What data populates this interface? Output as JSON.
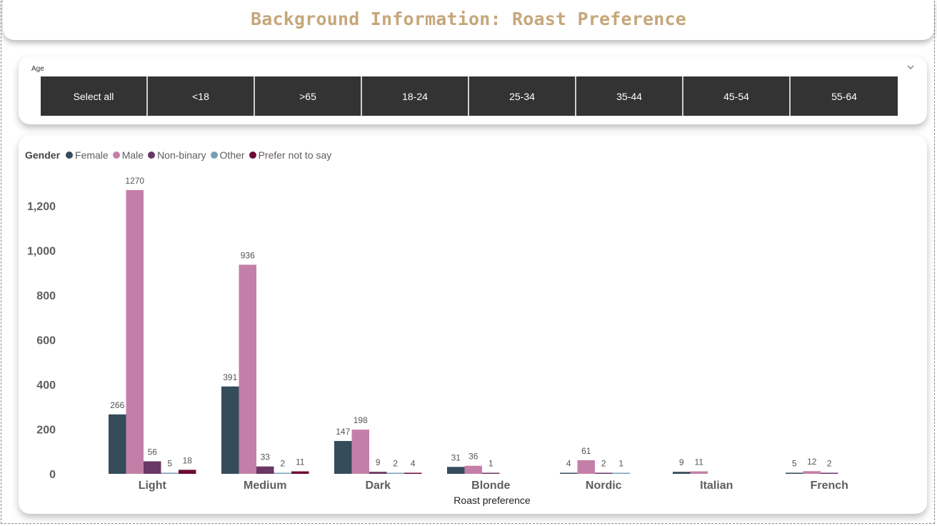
{
  "title": "Background Information: Roast Preference",
  "slicer": {
    "label": "Age",
    "options": [
      "Select all",
      "<18",
      ">65",
      "18-24",
      "25-34",
      "35-44",
      "45-54",
      "55-64"
    ]
  },
  "legend": {
    "title": "Gender",
    "items": [
      "Female",
      "Male",
      "Non-binary",
      "Other",
      "Prefer not to say"
    ]
  },
  "colors": {
    "Female": "#344c5b",
    "Male": "#c47fa8",
    "Non-binary": "#6a3766",
    "Other": "#7a9eb5",
    "Prefer not to say": "#6e0a33",
    "title": "#c6a77a",
    "slicer_bg": "#333333"
  },
  "chart_data": {
    "type": "bar",
    "xlabel": "Roast preference",
    "ylabel": "",
    "ylim": [
      0,
      1300
    ],
    "yticks": [
      0,
      200,
      400,
      600,
      800,
      1000,
      1200
    ],
    "ytick_labels": [
      "0",
      "200",
      "400",
      "600",
      "800",
      "1,000",
      "1,200"
    ],
    "categories": [
      "Light",
      "Medium",
      "Dark",
      "Blonde",
      "Nordic",
      "Italian",
      "French"
    ],
    "series": [
      {
        "name": "Female",
        "values": [
          266,
          391,
          147,
          31,
          4,
          9,
          5
        ]
      },
      {
        "name": "Male",
        "values": [
          1270,
          936,
          198,
          36,
          61,
          11,
          12
        ]
      },
      {
        "name": "Non-binary",
        "values": [
          56,
          33,
          9,
          1,
          2,
          null,
          2
        ]
      },
      {
        "name": "Other",
        "values": [
          5,
          2,
          2,
          null,
          1,
          null,
          null
        ]
      },
      {
        "name": "Prefer not to say",
        "values": [
          18,
          11,
          4,
          null,
          null,
          null,
          null
        ]
      }
    ],
    "legend_position": "top-left",
    "grid": false
  }
}
